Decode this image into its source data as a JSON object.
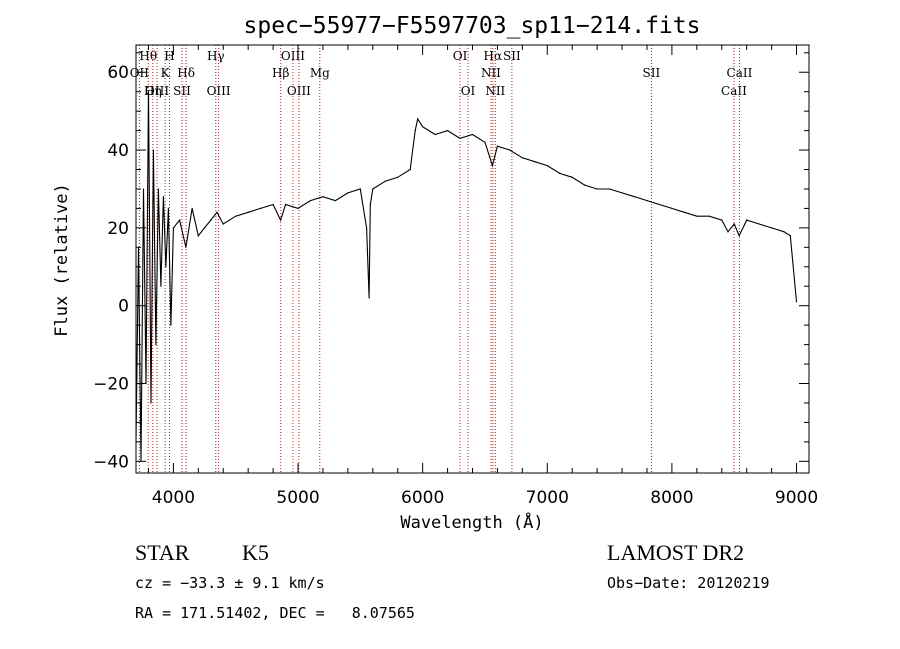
{
  "chart_data": {
    "type": "line",
    "title": "spec−55977−F5597703_sp11−214.fits",
    "xlabel": "Wavelength (Å)",
    "ylabel": "Flux (relative)",
    "xlim": [
      3700,
      9100
    ],
    "ylim": [
      -43,
      67
    ],
    "x_ticks": [
      4000,
      5000,
      6000,
      7000,
      8000,
      9000
    ],
    "x_tick_labels": [
      "4000",
      "5000",
      "6000",
      "7000",
      "8000",
      "9000"
    ],
    "y_ticks": [
      -40,
      -20,
      0,
      20,
      40,
      60
    ],
    "y_tick_labels": [
      "−40",
      "−20",
      "0",
      "20",
      "40",
      "60"
    ],
    "series": [
      {
        "color": "#000000",
        "x": [
          3700,
          3720,
          3740,
          3760,
          3780,
          3800,
          3820,
          3840,
          3860,
          3880,
          3900,
          3920,
          3940,
          3960,
          3980,
          4000,
          4050,
          4100,
          4150,
          4200,
          4250,
          4300,
          4350,
          4400,
          4500,
          4600,
          4700,
          4800,
          4860,
          4900,
          5000,
          5100,
          5200,
          5300,
          5400,
          5500,
          5550,
          5570,
          5580,
          5600,
          5700,
          5800,
          5900,
          5940,
          5960,
          6000,
          6100,
          6200,
          6300,
          6400,
          6500,
          6560,
          6600,
          6700,
          6800,
          6900,
          7000,
          7100,
          7200,
          7300,
          7400,
          7500,
          7600,
          7700,
          7800,
          7900,
          8000,
          8100,
          8200,
          8300,
          8400,
          8450,
          8500,
          8540,
          8600,
          8700,
          8800,
          8900,
          8950,
          9000
        ],
        "y": [
          -35,
          15,
          -40,
          30,
          -20,
          55,
          -25,
          40,
          -10,
          30,
          5,
          28,
          10,
          25,
          -5,
          20,
          22,
          15,
          25,
          18,
          20,
          22,
          24,
          21,
          23,
          24,
          25,
          26,
          22,
          26,
          25,
          27,
          28,
          27,
          29,
          30,
          20,
          2,
          26,
          30,
          32,
          33,
          35,
          45,
          48,
          46,
          44,
          45,
          43,
          44,
          42,
          36,
          41,
          40,
          38,
          37,
          36,
          34,
          33,
          31,
          30,
          30,
          29,
          28,
          27,
          26,
          25,
          24,
          23,
          23,
          22,
          19,
          21,
          18,
          22,
          21,
          20,
          19,
          18,
          1
        ]
      }
    ],
    "lines": [
      {
        "label": "OII",
        "x": 3727,
        "row": 2
      },
      {
        "label": "Hθ",
        "x": 3798,
        "row": 1
      },
      {
        "label": "Hη",
        "x": 3835,
        "row": 3
      },
      {
        "label": "OIII",
        "x": 3869,
        "row": 3
      },
      {
        "label": "K",
        "x": 3934,
        "row": 2
      },
      {
        "label": "H",
        "x": 3969,
        "row": 1
      },
      {
        "label": "SII",
        "x": 4069,
        "row": 3
      },
      {
        "label": "Hδ",
        "x": 4102,
        "row": 2
      },
      {
        "label": "Hγ",
        "x": 4340,
        "row": 1
      },
      {
        "label": "OIII",
        "x": 4363,
        "row": 3
      },
      {
        "label": "Hβ",
        "x": 4861,
        "row": 2
      },
      {
        "label": "OIII",
        "x": 4959,
        "row": 1
      },
      {
        "label": "OIII",
        "x": 5007,
        "row": 3
      },
      {
        "label": "Mg",
        "x": 5175,
        "row": 2
      },
      {
        "label": "OI",
        "x": 6300,
        "row": 1
      },
      {
        "label": "OI",
        "x": 6364,
        "row": 3
      },
      {
        "label": "NII",
        "x": 6548,
        "row": 2
      },
      {
        "label": "Hα",
        "x": 6563,
        "row": 1
      },
      {
        "label": "NII",
        "x": 6583,
        "row": 3
      },
      {
        "label": "SII",
        "x": 6716,
        "row": 1
      },
      {
        "label": "SII",
        "x": 7835,
        "row": 2
      },
      {
        "label": "CaII",
        "x": 8498,
        "row": 3
      },
      {
        "label": "CaII",
        "x": 8542,
        "row": 2
      }
    ]
  },
  "info": {
    "class": "STAR",
    "subclass": "K5",
    "survey": "LAMOST DR2",
    "cz": "cz = −33.3 ± 9.1 km/s",
    "obs_date": "Obs−Date: 20120219",
    "radec": "RA = 171.51402, DEC =   8.07565"
  }
}
